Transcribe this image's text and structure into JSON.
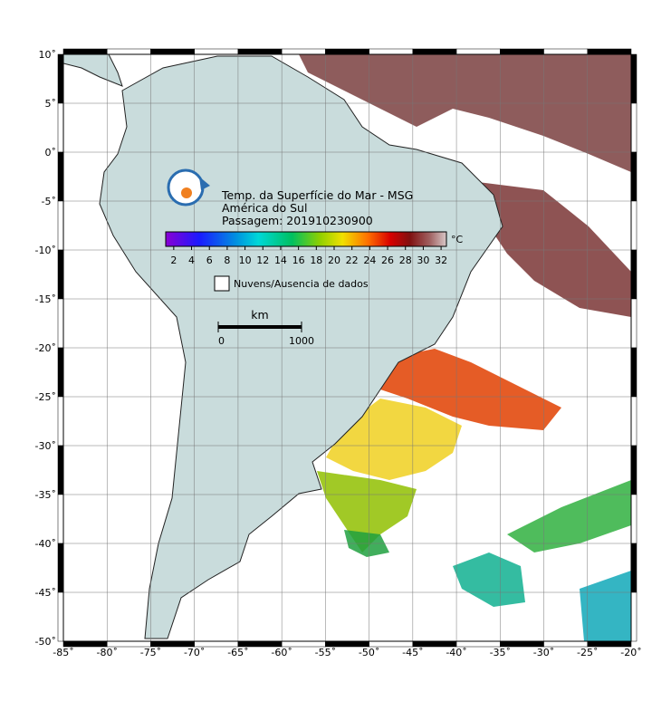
{
  "title": {
    "lines": [
      "Temp. da Superfície do Mar - MSG",
      "América do Sul",
      "Passagem: 201910230900"
    ]
  },
  "colorbar": {
    "unit": "°C",
    "lim": [
      1.1,
      32.6
    ],
    "ticks": [
      2,
      4,
      6,
      8,
      10,
      12,
      14,
      16,
      18,
      20,
      22,
      24,
      26,
      28,
      30,
      32
    ]
  },
  "legend": {
    "label": "Nuvens/Ausencia de dados"
  },
  "scale_bar": {
    "unit": "km",
    "ticks": [
      0,
      1000
    ]
  },
  "map": {
    "xlim": [
      -85,
      -20
    ],
    "ylim": [
      -50,
      10
    ],
    "xticks": [
      {
        "value": -85,
        "label": "-85˚"
      },
      {
        "value": -80,
        "label": "-80˚"
      },
      {
        "value": -75,
        "label": "-75˚"
      },
      {
        "value": -70,
        "label": "-70˚"
      },
      {
        "value": -65,
        "label": "-65˚"
      },
      {
        "value": -60,
        "label": "-60˚"
      },
      {
        "value": -55,
        "label": "-55˚"
      },
      {
        "value": -50,
        "label": "-50˚"
      },
      {
        "value": -45,
        "label": "-45˚"
      },
      {
        "value": -40,
        "label": "-40˚"
      },
      {
        "value": -35,
        "label": "-35˚"
      },
      {
        "value": -30,
        "label": "-30˚"
      },
      {
        "value": -25,
        "label": "-25˚"
      },
      {
        "value": -20,
        "label": "-20˚"
      }
    ],
    "yticks": [
      {
        "value": 10,
        "label": "10˚"
      },
      {
        "value": 5,
        "label": "5˚"
      },
      {
        "value": 0,
        "label": "0˚"
      },
      {
        "value": -5,
        "label": "-5˚"
      },
      {
        "value": -10,
        "label": "-10˚"
      },
      {
        "value": -15,
        "label": "-15˚"
      },
      {
        "value": -20,
        "label": "-20˚"
      },
      {
        "value": -25,
        "label": "-25˚"
      },
      {
        "value": -30,
        "label": "-30˚"
      },
      {
        "value": -35,
        "label": "-35˚"
      },
      {
        "value": -40,
        "label": "-40˚"
      },
      {
        "value": -45,
        "label": "-45˚"
      },
      {
        "value": -50,
        "label": "-50˚"
      }
    ]
  }
}
